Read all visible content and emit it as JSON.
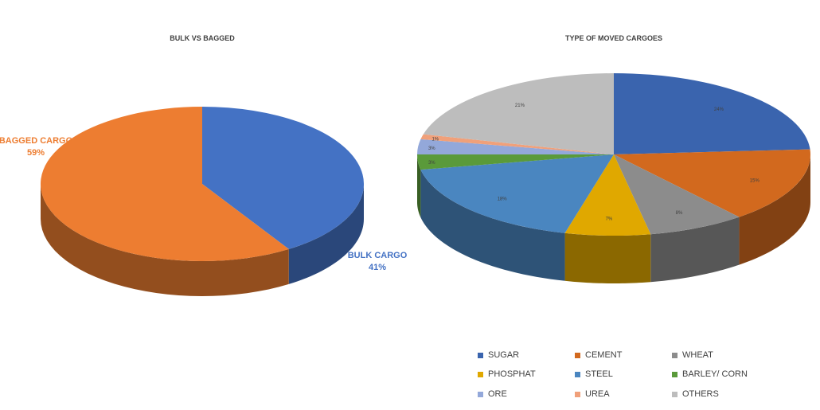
{
  "chart_data": [
    {
      "type": "pie",
      "title": "BULK VS BAGGED",
      "slices": [
        {
          "label": "BULK CARGO",
          "value": 41,
          "value_label": "41%",
          "color": "#4472C4"
        },
        {
          "label": "BAGGED CARGO",
          "value": 59,
          "value_label": "59%",
          "color": "#ED7D31"
        }
      ]
    },
    {
      "type": "pie",
      "title": "TYPE OF MOVED CARGOES",
      "slices": [
        {
          "label": "SUGAR",
          "value": 24,
          "value_label": "24%",
          "color": "#3A64AE"
        },
        {
          "label": "CEMENT",
          "value": 15,
          "value_label": "15%",
          "color": "#D2691E"
        },
        {
          "label": "WHEAT",
          "value": 8,
          "value_label": "8%",
          "color": "#8C8C8C"
        },
        {
          "label": "PHOSPHAT",
          "value": 7,
          "value_label": "7%",
          "color": "#E0A800"
        },
        {
          "label": "STEEL",
          "value": 18,
          "value_label": "18%",
          "color": "#4A86C0"
        },
        {
          "label": "BARLEY/ CORN",
          "value": 3,
          "value_label": "3%",
          "color": "#5A9A3A"
        },
        {
          "label": "ORE",
          "value": 3,
          "value_label": "3%",
          "color": "#93A8DA"
        },
        {
          "label": "UREA",
          "value": 1,
          "value_label": "1%",
          "color": "#F0A07A"
        },
        {
          "label": "OTHERS",
          "value": 21,
          "value_label": "21%",
          "color": "#BDBDBD"
        }
      ]
    }
  ]
}
